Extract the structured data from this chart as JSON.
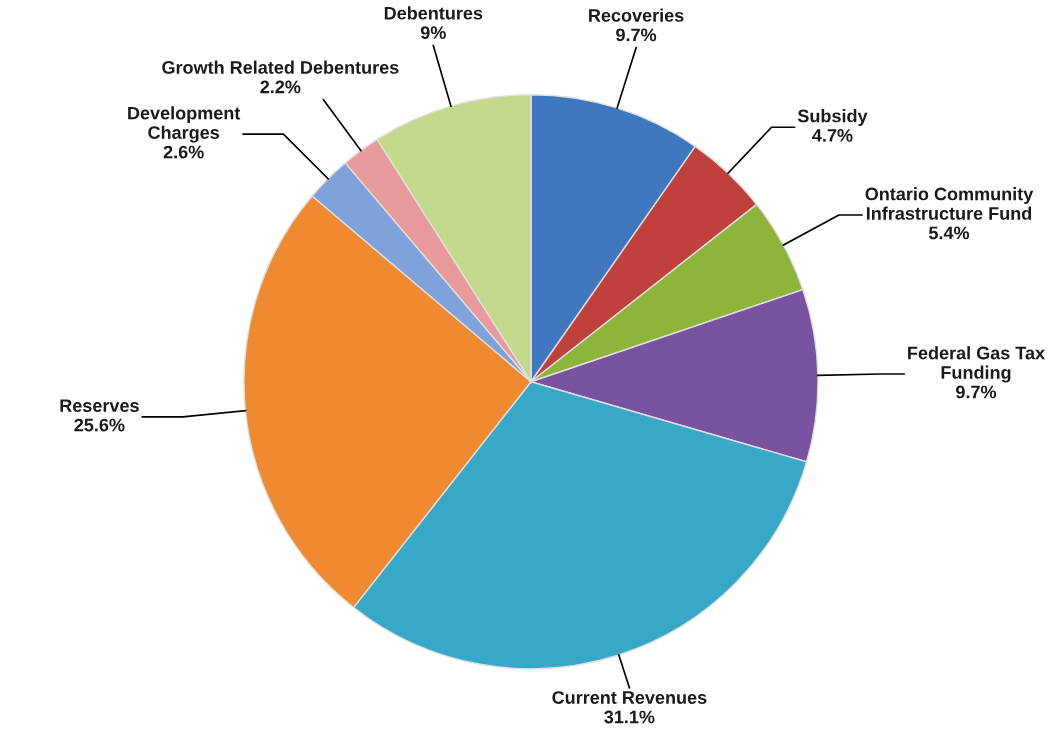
{
  "chart_data": {
    "type": "pie",
    "categories": [
      "Recoveries",
      "Subsidy",
      "Ontario Community\nInfrastructure Fund",
      "Federal Gas Tax\nFunding",
      "Current Revenues",
      "Reserves",
      "Development\nCharges",
      "Growth Related Debentures",
      "Debentures"
    ],
    "values": [
      9.7,
      4.7,
      5.4,
      9.7,
      31.1,
      25.6,
      2.6,
      2.2,
      9
    ],
    "value_labels": [
      "9.7%",
      "4.7%",
      "5.4%",
      "9.7%",
      "31.1%",
      "25.6%",
      "2.6%",
      "2.2%",
      "9%"
    ],
    "colors": [
      "#3f78c0",
      "#c0413b",
      "#8db53c",
      "#7953a0",
      "#38a8c8",
      "#f08a30",
      "#7fa2dc",
      "#e89a9a",
      "#c3d98c"
    ]
  }
}
